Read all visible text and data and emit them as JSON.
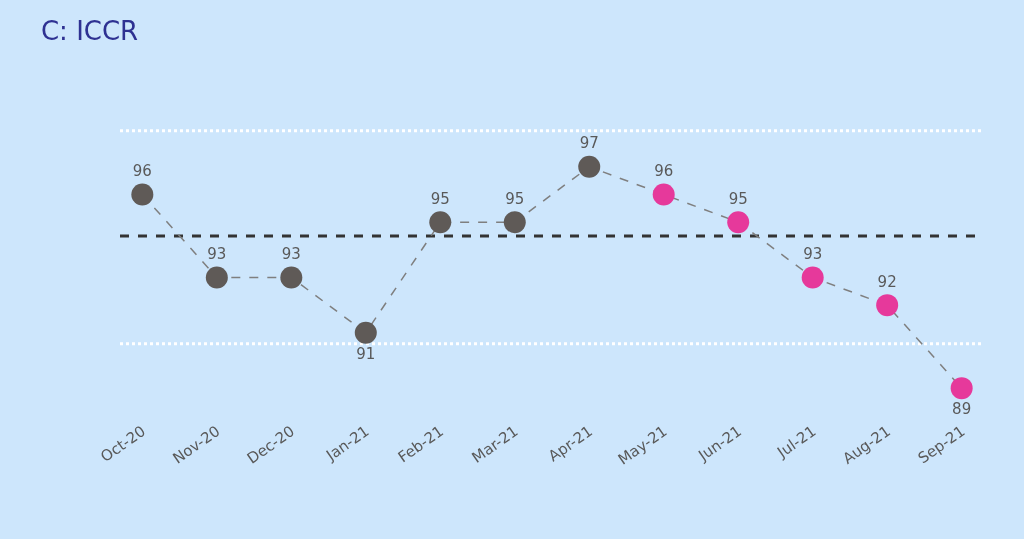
{
  "chart_data": {
    "type": "line",
    "title": "C: ICCR",
    "categories": [
      "Oct-20",
      "Nov-20",
      "Dec-20",
      "Jan-21",
      "Feb-21",
      "Mar-21",
      "Apr-21",
      "May-21",
      "Jun-21",
      "Jul-21",
      "Aug-21",
      "Sep-21"
    ],
    "series": [
      {
        "color": "#7f7f7f",
        "values": [
          96,
          93,
          93,
          91,
          95,
          95,
          97,
          96,
          95,
          93,
          92,
          89
        ],
        "colors": [
          "#5f5a57",
          "#5f5a57",
          "#5f5a57",
          "#5f5a57",
          "#5f5a57",
          "#5f5a57",
          "#5f5a57",
          "#e6399b",
          "#e6399b",
          "#e6399b",
          "#e6399b",
          "#e6399b"
        ]
      }
    ],
    "data_labels": true,
    "marker": "circle",
    "line_style": "dashed",
    "grid": false,
    "ref_lines": [
      {
        "axis": "y",
        "value": 94.5,
        "color": "#333333",
        "line_style": "dashed"
      },
      {
        "axis": "y",
        "value": 98.3,
        "color": "#ffffff",
        "line_style": "dotted"
      },
      {
        "axis": "y",
        "value": 90.6,
        "color": "#ffffff",
        "line_style": "dotted"
      }
    ]
  }
}
